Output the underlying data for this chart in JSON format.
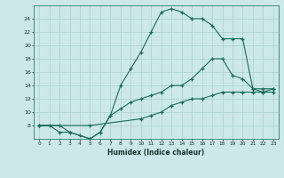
{
  "xlabel": "Humidex (Indice chaleur)",
  "bg_color": "#cce8e8",
  "line_color": "#1a6b5a",
  "grid_color": "#aad0d0",
  "line1_x": [
    0,
    1,
    2,
    3,
    4,
    5,
    6,
    7,
    8,
    9,
    10,
    11,
    12,
    13,
    14,
    15,
    16,
    17,
    18,
    19,
    20,
    21,
    22,
    23
  ],
  "line1_y": [
    8,
    8,
    7,
    7,
    6.5,
    6,
    7,
    9.5,
    14,
    16.5,
    19,
    22,
    25,
    25.5,
    25,
    24,
    24,
    23,
    21,
    21,
    21,
    13.5,
    13,
    13
  ],
  "line2_x": [
    0,
    2,
    3,
    5,
    6,
    7,
    8,
    9,
    10,
    11,
    12,
    13,
    14,
    15,
    16,
    17,
    18,
    19,
    20,
    21,
    22,
    23
  ],
  "line2_y": [
    8,
    8,
    7,
    6,
    7,
    9.5,
    10.5,
    11.5,
    12,
    12.5,
    13,
    14,
    14,
    15,
    16.5,
    18,
    18,
    15.5,
    15,
    13.5,
    13.5,
    13.5
  ],
  "line3_x": [
    0,
    5,
    10,
    11,
    12,
    13,
    14,
    15,
    16,
    17,
    18,
    19,
    20,
    21,
    22,
    23
  ],
  "line3_y": [
    8,
    8,
    9,
    9.5,
    10,
    11,
    11.5,
    12,
    12,
    12.5,
    13,
    13,
    13,
    13,
    13,
    13.5
  ],
  "xlim": [
    -0.5,
    23.5
  ],
  "ylim": [
    6,
    26
  ],
  "yticks": [
    8,
    10,
    12,
    14,
    16,
    18,
    20,
    22,
    24
  ],
  "xticks": [
    0,
    1,
    2,
    3,
    4,
    5,
    6,
    7,
    8,
    9,
    10,
    11,
    12,
    13,
    14,
    15,
    16,
    17,
    18,
    19,
    20,
    21,
    22,
    23
  ]
}
